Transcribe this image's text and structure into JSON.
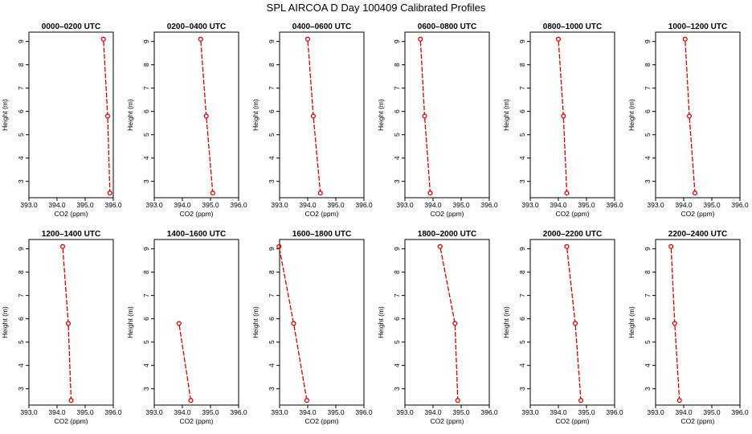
{
  "figure": {
    "title": "SPL AIRCOA D  Day 100409  Calibrated Profiles"
  },
  "chart_data": [
    {
      "type": "line",
      "title": "0000–0200 UTC",
      "xlabel": "CO2 (ppm)",
      "ylabel": "Height (m)",
      "xlim": [
        393.0,
        396.0
      ],
      "ylim": [
        2.3,
        9.4
      ],
      "xticks": [
        "393.0",
        "394.0",
        "395.0",
        "396.0"
      ],
      "yticks": [
        "3",
        "4",
        "5",
        "6",
        "7",
        "8",
        "9"
      ],
      "x": [
        395.65,
        395.8,
        395.88
      ],
      "y": [
        9.1,
        5.8,
        2.5
      ]
    },
    {
      "type": "line",
      "title": "0200–0400 UTC",
      "xlabel": "CO2 (ppm)",
      "ylabel": "Height (m)",
      "xlim": [
        393.0,
        396.0
      ],
      "ylim": [
        2.3,
        9.4
      ],
      "xticks": [
        "393.0",
        "394.0",
        "395.0",
        "396.0"
      ],
      "yticks": [
        "3",
        "4",
        "5",
        "6",
        "7",
        "8",
        "9"
      ],
      "x": [
        394.65,
        394.85,
        395.08
      ],
      "y": [
        9.1,
        5.8,
        2.5
      ]
    },
    {
      "type": "line",
      "title": "0400–0600 UTC",
      "xlabel": "CO2 (ppm)",
      "ylabel": "Height (m)",
      "xlim": [
        393.0,
        396.0
      ],
      "ylim": [
        2.3,
        9.4
      ],
      "xticks": [
        "393.0",
        "394.0",
        "395.0",
        "396.0"
      ],
      "yticks": [
        "3",
        "4",
        "5",
        "6",
        "7",
        "8",
        "9"
      ],
      "x": [
        394.0,
        394.2,
        394.45
      ],
      "y": [
        9.1,
        5.8,
        2.5
      ]
    },
    {
      "type": "line",
      "title": "0600–0800 UTC",
      "xlabel": "CO2 (ppm)",
      "ylabel": "Height (m)",
      "xlim": [
        393.0,
        396.0
      ],
      "ylim": [
        2.3,
        9.4
      ],
      "xticks": [
        "393.0",
        "394.0",
        "395.0",
        "396.0"
      ],
      "yticks": [
        "3",
        "4",
        "5",
        "6",
        "7",
        "8",
        "9"
      ],
      "x": [
        393.55,
        393.7,
        393.9
      ],
      "y": [
        9.1,
        5.8,
        2.5
      ]
    },
    {
      "type": "line",
      "title": "0800–1000 UTC",
      "xlabel": "CO2 (ppm)",
      "ylabel": "Height (m)",
      "xlim": [
        393.0,
        396.0
      ],
      "ylim": [
        2.3,
        9.4
      ],
      "xticks": [
        "393.0",
        "394.0",
        "395.0",
        "396.0"
      ],
      "yticks": [
        "3",
        "4",
        "5",
        "6",
        "7",
        "8",
        "9"
      ],
      "x": [
        394.0,
        394.18,
        394.3
      ],
      "y": [
        9.1,
        5.8,
        2.5
      ]
    },
    {
      "type": "line",
      "title": "1000–1200 UTC",
      "xlabel": "CO2 (ppm)",
      "ylabel": "Height (m)",
      "xlim": [
        393.0,
        396.0
      ],
      "ylim": [
        2.3,
        9.4
      ],
      "xticks": [
        "393.0",
        "394.0",
        "395.0",
        "396.0"
      ],
      "yticks": [
        "3",
        "4",
        "5",
        "6",
        "7",
        "8",
        "9"
      ],
      "x": [
        394.05,
        394.2,
        394.4
      ],
      "y": [
        9.1,
        5.8,
        2.5
      ]
    },
    {
      "type": "line",
      "title": "1200–1400 UTC",
      "xlabel": "CO2 (ppm)",
      "ylabel": "Height (m)",
      "xlim": [
        393.0,
        396.0
      ],
      "ylim": [
        2.3,
        9.4
      ],
      "xticks": [
        "393.0",
        "394.0",
        "395.0",
        "396.0"
      ],
      "yticks": [
        "3",
        "4",
        "5",
        "6",
        "7",
        "8",
        "9"
      ],
      "x": [
        394.2,
        394.4,
        394.5
      ],
      "y": [
        9.1,
        5.8,
        2.5
      ]
    },
    {
      "type": "line",
      "title": "1400–1600 UTC",
      "xlabel": "CO2 (ppm)",
      "ylabel": "Height (m)",
      "xlim": [
        393.0,
        396.0
      ],
      "ylim": [
        2.3,
        9.4
      ],
      "xticks": [
        "393.0",
        "394.0",
        "395.0",
        "396.0"
      ],
      "yticks": [
        "3",
        "4",
        "5",
        "6",
        "7",
        "8",
        "9"
      ],
      "x": [
        393.88,
        394.3
      ],
      "y": [
        5.8,
        2.5
      ]
    },
    {
      "type": "line",
      "title": "1600–1800 UTC",
      "xlabel": "CO2 (ppm)",
      "ylabel": "Height (m)",
      "xlim": [
        393.0,
        396.0
      ],
      "ylim": [
        2.3,
        9.4
      ],
      "xticks": [
        "393.0",
        "394.0",
        "395.0",
        "396.0"
      ],
      "yticks": [
        "3",
        "4",
        "5",
        "6",
        "7",
        "8",
        "9"
      ],
      "x": [
        392.98,
        393.5,
        393.97
      ],
      "y": [
        9.1,
        5.8,
        2.5
      ]
    },
    {
      "type": "line",
      "title": "1800–2000 UTC",
      "xlabel": "CO2 (ppm)",
      "ylabel": "Height (m)",
      "xlim": [
        393.0,
        396.0
      ],
      "ylim": [
        2.3,
        9.4
      ],
      "xticks": [
        "393.0",
        "394.0",
        "395.0",
        "396.0"
      ],
      "yticks": [
        "3",
        "4",
        "5",
        "6",
        "7",
        "8",
        "9"
      ],
      "x": [
        394.25,
        394.78,
        394.88
      ],
      "y": [
        9.1,
        5.8,
        2.5
      ]
    },
    {
      "type": "line",
      "title": "2000–2200 UTC",
      "xlabel": "CO2 (ppm)",
      "ylabel": "Height (m)",
      "xlim": [
        393.0,
        396.0
      ],
      "ylim": [
        2.3,
        9.4
      ],
      "xticks": [
        "393.0",
        "394.0",
        "395.0",
        "396.0"
      ],
      "yticks": [
        "3",
        "4",
        "5",
        "6",
        "7",
        "8",
        "9"
      ],
      "x": [
        394.3,
        394.6,
        394.8
      ],
      "y": [
        9.1,
        5.8,
        2.5
      ]
    },
    {
      "type": "line",
      "title": "2200–2400 UTC",
      "xlabel": "CO2 (ppm)",
      "ylabel": "Height (m)",
      "xlim": [
        393.0,
        396.0
      ],
      "ylim": [
        2.3,
        9.4
      ],
      "xticks": [
        "393.0",
        "394.0",
        "395.0",
        "396.0"
      ],
      "yticks": [
        "3",
        "4",
        "5",
        "6",
        "7",
        "8",
        "9"
      ],
      "x": [
        393.55,
        393.68,
        393.85
      ],
      "y": [
        9.1,
        5.8,
        2.5
      ]
    }
  ],
  "colors": {
    "series": "#dd0000",
    "axes": "#000000",
    "background": "#ffffff"
  }
}
